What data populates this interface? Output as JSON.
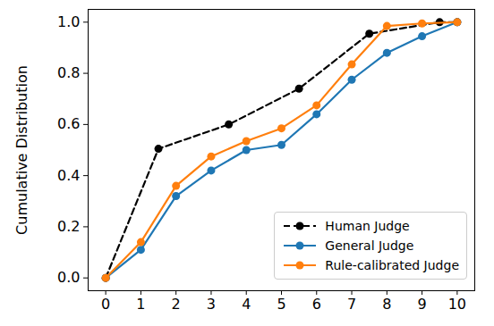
{
  "chart_data": {
    "type": "line",
    "ylabel": "Cumulative Distribution",
    "xlim": [
      -0.5,
      10.5
    ],
    "xticks": [
      0,
      1,
      2,
      3,
      4,
      5,
      6,
      7,
      8,
      9,
      10
    ],
    "ylim": [
      -0.05,
      1.05
    ],
    "yticks": [
      {
        "value": 0,
        "label": "0.0"
      },
      {
        "value": 0.2,
        "label": "0.2"
      },
      {
        "value": 0.4,
        "label": "0.4"
      },
      {
        "value": 0.6,
        "label": "0.6"
      },
      {
        "value": 0.8,
        "label": "0.8"
      },
      {
        "value": 1,
        "label": "1.0"
      }
    ],
    "grid": false,
    "legend": "lower right",
    "series": [
      {
        "name": "Human Judge",
        "color": "#000000",
        "line_style": "dashed",
        "marker": "circle",
        "x": [
          0,
          1.5,
          3.5,
          5.5,
          7.5,
          9.5,
          10
        ],
        "values": [
          0,
          0.505,
          0.6,
          0.74,
          0.955,
          1.0,
          1.0
        ]
      },
      {
        "name": "General Judge",
        "color": "#1f77b4",
        "line_style": "solid",
        "marker": "circle",
        "x": [
          0,
          1,
          2,
          3,
          4,
          5,
          6,
          7,
          8,
          9,
          10
        ],
        "values": [
          0,
          0.11,
          0.32,
          0.42,
          0.5,
          0.52,
          0.64,
          0.775,
          0.88,
          0.945,
          1.0
        ]
      },
      {
        "name": "Rule-calibrated Judge",
        "color": "#ff7f0e",
        "line_style": "solid",
        "marker": "circle",
        "x": [
          0,
          1,
          2,
          3,
          4,
          5,
          6,
          7,
          8,
          9,
          10
        ],
        "values": [
          0,
          0.14,
          0.36,
          0.475,
          0.535,
          0.585,
          0.675,
          0.835,
          0.985,
          0.995,
          1.0
        ]
      }
    ]
  }
}
